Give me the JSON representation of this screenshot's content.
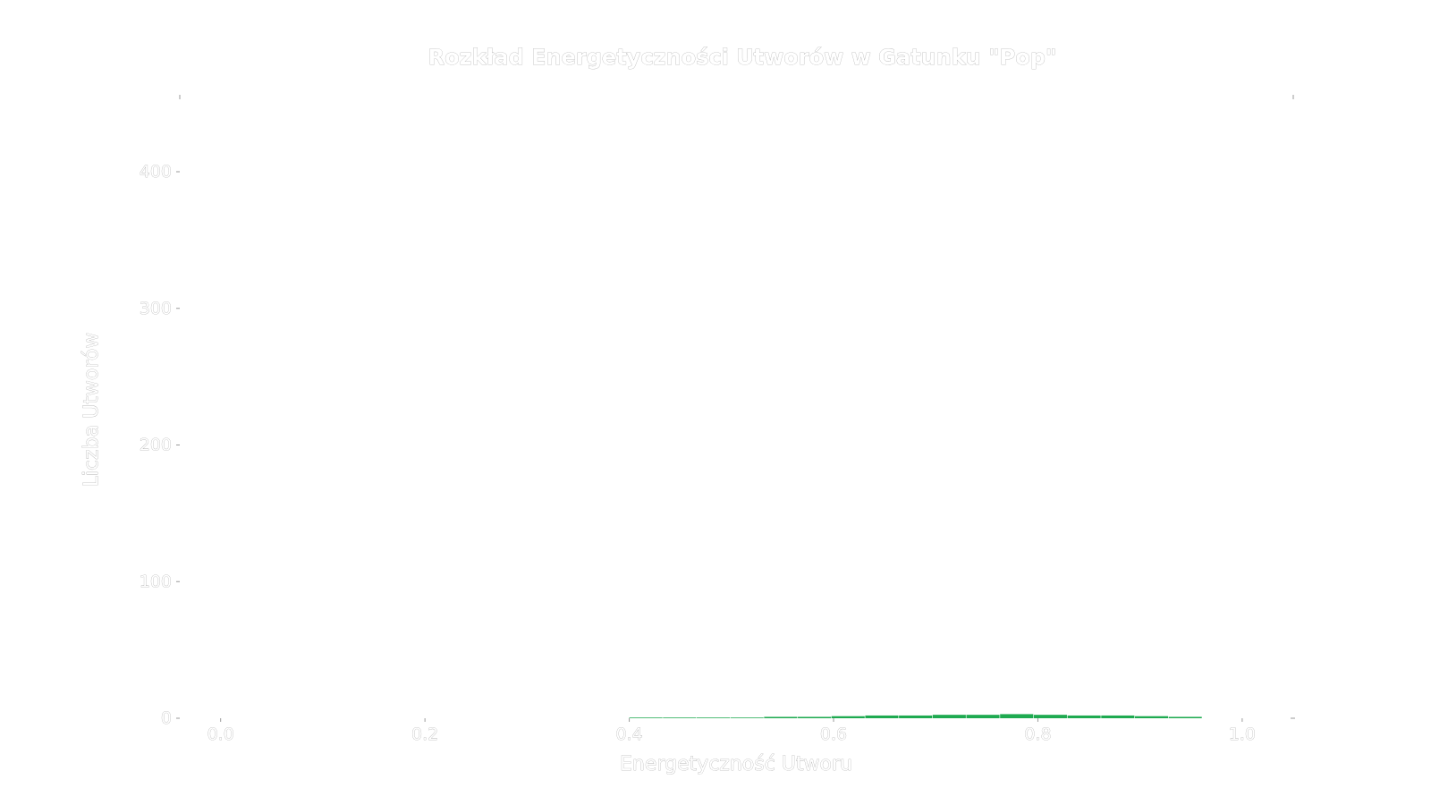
{
  "chart_data": {
    "type": "bar",
    "title": "Rozkład Energetyczności Utworów w Gatunku \"Pop\"",
    "xlabel": "Energetyczność Utworu",
    "ylabel": "Liczba Utworów",
    "xlim": [
      -0.04,
      1.05
    ],
    "ylim": [
      0,
      455
    ],
    "x_ticks": [
      "0.0",
      "0.2",
      "0.4",
      "0.6",
      "0.8",
      "1.0"
    ],
    "y_ticks": [
      "0",
      "100",
      "200",
      "300",
      "400"
    ],
    "bin_width": 0.033,
    "bins": [
      {
        "x0": 0.4,
        "count": 0.5
      },
      {
        "x0": 0.433,
        "count": 0.5
      },
      {
        "x0": 0.466,
        "count": 0.5
      },
      {
        "x0": 0.499,
        "count": 0.5
      },
      {
        "x0": 0.532,
        "count": 1
      },
      {
        "x0": 0.565,
        "count": 1
      },
      {
        "x0": 0.598,
        "count": 1.5
      },
      {
        "x0": 0.631,
        "count": 2
      },
      {
        "x0": 0.664,
        "count": 2
      },
      {
        "x0": 0.697,
        "count": 2.5
      },
      {
        "x0": 0.73,
        "count": 2.5
      },
      {
        "x0": 0.763,
        "count": 3
      },
      {
        "x0": 0.796,
        "count": 2.5
      },
      {
        "x0": 0.829,
        "count": 2
      },
      {
        "x0": 0.862,
        "count": 2
      },
      {
        "x0": 0.895,
        "count": 1.5
      },
      {
        "x0": 0.928,
        "count": 1
      }
    ],
    "bar_color": "#1eaa50",
    "grid": false,
    "legend": false
  }
}
